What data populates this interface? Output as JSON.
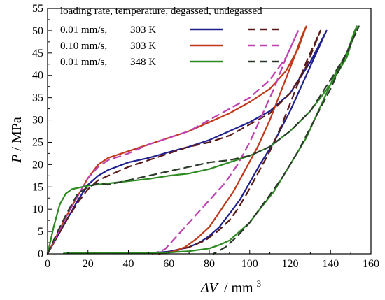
{
  "chart_data": {
    "type": "line",
    "title": "",
    "xlabel_symbol": "ΔV",
    "xlabel_unit": "mm",
    "xlabel_unit_sup": "3",
    "ylabel_symbol": "P",
    "ylabel_unit": "MPa",
    "xlim": [
      0,
      160
    ],
    "ylim": [
      0,
      55
    ],
    "xticks": [
      "0",
      "20",
      "40",
      "60",
      "80",
      "100",
      "120",
      "140",
      "160"
    ],
    "yticks": [
      "0",
      "5",
      "10",
      "15",
      "20",
      "25",
      "30",
      "35",
      "40",
      "45",
      "50",
      "55"
    ],
    "grid": false,
    "legend": {
      "placement": "top-left",
      "header": "loading rate, temperature, degassed, undegassed",
      "rows": [
        {
          "rate": "0.01 mm/s,",
          "temp": "303 K",
          "solid_color": "#1f1f8f",
          "dash_color": "#5a1a1a"
        },
        {
          "rate": "0.10 mm/s,",
          "temp": "303 K",
          "solid_color": "#c0391b",
          "dash_color": "#c040b0"
        },
        {
          "rate": "0.01 mm/s,",
          "temp": "348 K",
          "solid_color": "#2e8b22",
          "dash_color": "#2a3a2a"
        }
      ]
    },
    "series": [
      {
        "style": "solid",
        "color": "#1f1f8f",
        "points": [
          [
            0,
            0
          ],
          [
            5,
            4
          ],
          [
            10,
            8
          ],
          [
            15,
            12
          ],
          [
            20,
            15.5
          ],
          [
            25,
            17.5
          ],
          [
            30,
            18.8
          ],
          [
            40,
            20.5
          ],
          [
            50,
            21.5
          ],
          [
            60,
            22.8
          ],
          [
            70,
            24
          ],
          [
            80,
            25.5
          ],
          [
            90,
            27.5
          ],
          [
            100,
            29.5
          ],
          [
            110,
            32
          ],
          [
            120,
            36
          ],
          [
            130,
            43
          ],
          [
            138,
            50
          ],
          [
            137,
            49
          ],
          [
            132,
            44
          ],
          [
            126,
            38
          ],
          [
            120,
            32
          ],
          [
            112,
            25
          ],
          [
            105,
            20
          ],
          [
            100,
            16
          ],
          [
            95,
            12
          ],
          [
            90,
            9
          ],
          [
            85,
            6
          ],
          [
            80,
            4
          ],
          [
            75,
            2.5
          ],
          [
            70,
            1.5
          ],
          [
            65,
            1
          ],
          [
            60,
            0.5
          ],
          [
            50,
            0.2
          ],
          [
            40,
            0.2
          ],
          [
            30,
            0.3
          ],
          [
            20,
            0.3
          ],
          [
            10,
            0.2
          ]
        ]
      },
      {
        "style": "dashed",
        "color": "#5a1a1a",
        "points": [
          [
            0,
            0
          ],
          [
            5,
            4
          ],
          [
            10,
            8
          ],
          [
            15,
            11.5
          ],
          [
            20,
            14.5
          ],
          [
            25,
            16.5
          ],
          [
            30,
            17.5
          ],
          [
            40,
            19.5
          ],
          [
            50,
            21
          ],
          [
            60,
            22.5
          ],
          [
            70,
            24
          ],
          [
            80,
            25
          ],
          [
            90,
            26.5
          ],
          [
            100,
            29
          ],
          [
            110,
            31.5
          ],
          [
            120,
            36
          ],
          [
            128,
            42
          ],
          [
            135,
            50
          ],
          [
            134,
            49
          ],
          [
            128,
            43
          ],
          [
            122,
            36
          ],
          [
            116,
            29
          ],
          [
            110,
            23
          ],
          [
            104,
            18
          ],
          [
            98,
            13
          ],
          [
            94,
            10
          ],
          [
            90,
            7.5
          ],
          [
            84,
            5
          ],
          [
            78,
            3
          ],
          [
            70,
            1.5
          ],
          [
            62,
            0.5
          ],
          [
            55,
            0
          ]
        ]
      },
      {
        "style": "solid",
        "color": "#c0391b",
        "points": [
          [
            0,
            0
          ],
          [
            5,
            4.5
          ],
          [
            10,
            9
          ],
          [
            15,
            13
          ],
          [
            20,
            17
          ],
          [
            25,
            20
          ],
          [
            30,
            21.5
          ],
          [
            40,
            23
          ],
          [
            50,
            24.5
          ],
          [
            60,
            26
          ],
          [
            70,
            27.5
          ],
          [
            80,
            29.5
          ],
          [
            90,
            31.5
          ],
          [
            100,
            34
          ],
          [
            110,
            37
          ],
          [
            118,
            41
          ],
          [
            124,
            46
          ],
          [
            128,
            51
          ],
          [
            126,
            49
          ],
          [
            122,
            44
          ],
          [
            116,
            37
          ],
          [
            110,
            30
          ],
          [
            104,
            24
          ],
          [
            98,
            19
          ],
          [
            92,
            14
          ],
          [
            86,
            10
          ],
          [
            80,
            6
          ],
          [
            74,
            3.5
          ],
          [
            68,
            1.5
          ],
          [
            62,
            0.5
          ],
          [
            55,
            0
          ]
        ]
      },
      {
        "style": "dashed",
        "color": "#c040b0",
        "points": [
          [
            0,
            0
          ],
          [
            5,
            4.5
          ],
          [
            10,
            9
          ],
          [
            15,
            13
          ],
          [
            20,
            17
          ],
          [
            25,
            19.5
          ],
          [
            30,
            21
          ],
          [
            40,
            22.5
          ],
          [
            50,
            24.5
          ],
          [
            60,
            26
          ],
          [
            70,
            27.5
          ],
          [
            80,
            30
          ],
          [
            90,
            32.5
          ],
          [
            100,
            35
          ],
          [
            110,
            39
          ],
          [
            118,
            44
          ],
          [
            124,
            50
          ],
          [
            123,
            49
          ],
          [
            118,
            44
          ],
          [
            112,
            37
          ],
          [
            106,
            31
          ],
          [
            100,
            25
          ],
          [
            94,
            20
          ],
          [
            88,
            16
          ],
          [
            80,
            12
          ],
          [
            72,
            8
          ],
          [
            64,
            4
          ],
          [
            58,
            1
          ],
          [
            52,
            0
          ]
        ]
      },
      {
        "style": "solid",
        "color": "#2e8b22",
        "points": [
          [
            0,
            0
          ],
          [
            3,
            6
          ],
          [
            6,
            11
          ],
          [
            9,
            13.5
          ],
          [
            12,
            14.5
          ],
          [
            20,
            15.3
          ],
          [
            30,
            15.8
          ],
          [
            40,
            16.3
          ],
          [
            50,
            16.8
          ],
          [
            60,
            17.5
          ],
          [
            70,
            18
          ],
          [
            80,
            19
          ],
          [
            90,
            20.5
          ],
          [
            100,
            22
          ],
          [
            110,
            24
          ],
          [
            120,
            27.5
          ],
          [
            130,
            32
          ],
          [
            140,
            38
          ],
          [
            148,
            44
          ],
          [
            153,
            51
          ],
          [
            152,
            50
          ],
          [
            148,
            45
          ],
          [
            142,
            40
          ],
          [
            135,
            33
          ],
          [
            128,
            26
          ],
          [
            120,
            20
          ],
          [
            112,
            14
          ],
          [
            105,
            10
          ],
          [
            100,
            7
          ],
          [
            95,
            5
          ],
          [
            90,
            3
          ],
          [
            85,
            2
          ],
          [
            80,
            1.2
          ],
          [
            70,
            0.6
          ],
          [
            60,
            0.3
          ],
          [
            40,
            0.2
          ],
          [
            30,
            0.3
          ],
          [
            20,
            0.2
          ],
          [
            8,
            0.1
          ]
        ]
      },
      {
        "style": "dashed",
        "color": "#2a3a2a",
        "points": [
          [
            0,
            0
          ],
          [
            5,
            5
          ],
          [
            10,
            9.5
          ],
          [
            15,
            13.5
          ],
          [
            20,
            15
          ],
          [
            25,
            15.8
          ],
          [
            30,
            15.5
          ],
          [
            40,
            16.5
          ],
          [
            50,
            17.5
          ],
          [
            60,
            18.5
          ],
          [
            70,
            19.5
          ],
          [
            80,
            20.5
          ],
          [
            90,
            21
          ],
          [
            100,
            22
          ],
          [
            110,
            24
          ],
          [
            120,
            27.5
          ],
          [
            130,
            32
          ],
          [
            140,
            39
          ],
          [
            148,
            45
          ],
          [
            154,
            51
          ],
          [
            152,
            49
          ],
          [
            146,
            43
          ],
          [
            140,
            37
          ],
          [
            132,
            30
          ],
          [
            124,
            23
          ],
          [
            116,
            17
          ],
          [
            108,
            12
          ],
          [
            100,
            7
          ],
          [
            94,
            4
          ],
          [
            88,
            1.5
          ],
          [
            82,
            0
          ]
        ]
      }
    ]
  }
}
